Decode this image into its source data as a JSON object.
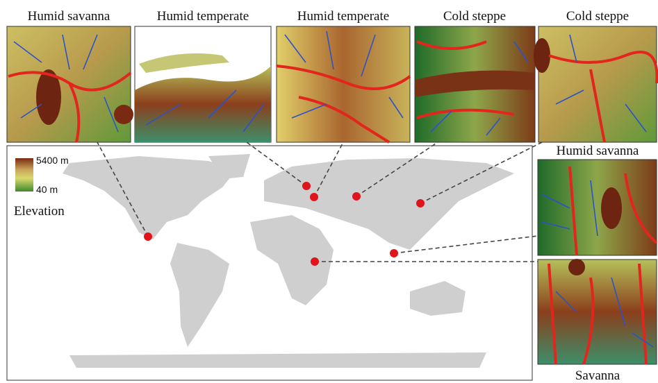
{
  "tiles": [
    {
      "label": "Humid savanna"
    },
    {
      "label": "Humid temperate"
    },
    {
      "label": "Humid temperate"
    },
    {
      "label": "Cold steppe"
    },
    {
      "label": "Cold steppe"
    },
    {
      "label": "Humid savanna"
    },
    {
      "label": "Savanna"
    }
  ],
  "legend": {
    "max_label": "5400 m",
    "min_label": "40 m",
    "title": "Elevation"
  }
}
